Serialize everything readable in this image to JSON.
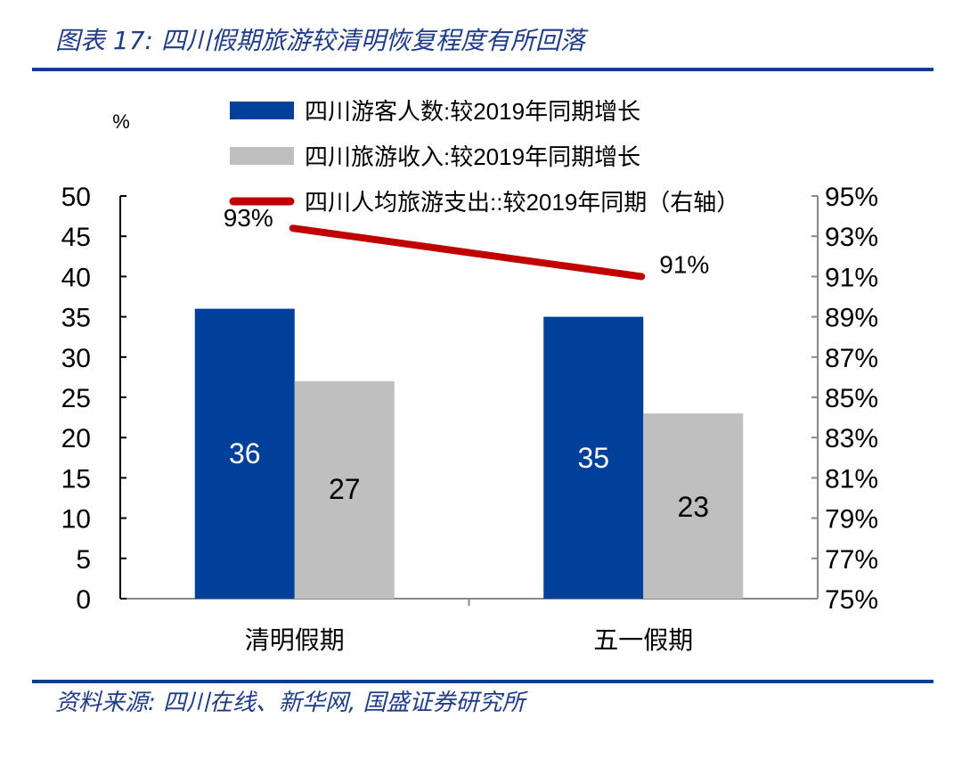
{
  "title": "图表 17:  四川假期旅游较清明恢复程度有所回落",
  "source": "资料来源:  四川在线、新华网, 国盛证券研究所",
  "colors": {
    "blue": "#003f9a",
    "gray": "#bfbfbf",
    "red": "#c00000",
    "rule": "#0b3d91"
  },
  "chart_data": {
    "type": "bar",
    "title": "图表 17:  四川假期旅游较清明恢复程度有所回落",
    "ylabel": "%",
    "ylim": [
      0,
      50
    ],
    "yticks": [
      "0",
      "5",
      "10",
      "15",
      "20",
      "25",
      "30",
      "35",
      "40",
      "45",
      "50"
    ],
    "y2lim": [
      75,
      95
    ],
    "y2ticks": [
      "75%",
      "77%",
      "79%",
      "81%",
      "83%",
      "85%",
      "87%",
      "89%",
      "91%",
      "93%",
      "95%"
    ],
    "categories": [
      "清明假期",
      "五一假期"
    ],
    "series": [
      {
        "name": "四川游客人数:较2019年同期增长",
        "type": "bar",
        "axis": "left",
        "values": [
          36,
          35
        ],
        "labels": [
          "36",
          "35"
        ]
      },
      {
        "name": "四川旅游收入:较2019年同期增长",
        "type": "bar",
        "axis": "left",
        "values": [
          27,
          23
        ],
        "labels": [
          "27",
          "23"
        ]
      },
      {
        "name": "四川人均旅游支出::较2019年同期（右轴）",
        "type": "line",
        "axis": "right",
        "values": [
          93.4,
          91.0
        ],
        "labels": [
          "93%",
          "91%"
        ]
      }
    ],
    "legend_position": "top"
  }
}
